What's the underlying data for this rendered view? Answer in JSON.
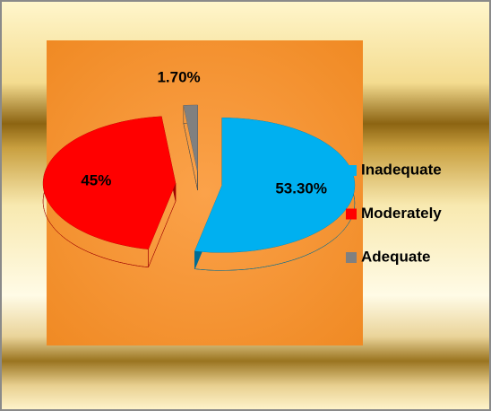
{
  "chart_data": {
    "type": "pie",
    "categories": [
      "Inadequate",
      "Moderately",
      "Adequate"
    ],
    "values": [
      53.3,
      45,
      1.7
    ],
    "value_labels": [
      "53.30%",
      "45%",
      "1.70%"
    ],
    "colors": [
      "#00b0f0",
      "#ff0000",
      "#808080"
    ],
    "legend": "right"
  }
}
